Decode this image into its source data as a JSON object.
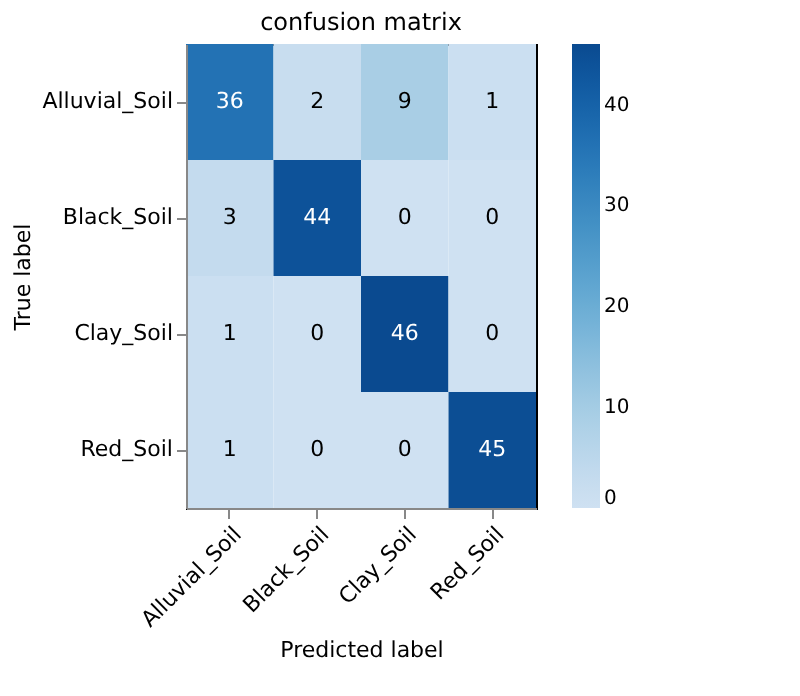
{
  "chart_data": {
    "type": "heatmap",
    "title": "confusion matrix",
    "xlabel": "Predicted label",
    "ylabel": "True label",
    "categories": [
      "Alluvial_Soil",
      "Black_Soil",
      "Clay_Soil",
      "Red_Soil"
    ],
    "y_categories": [
      "Alluvial_Soil",
      "Black_Soil",
      "Clay_Soil",
      "Red_Soil"
    ],
    "cells": [
      [
        36,
        2,
        9,
        1
      ],
      [
        3,
        44,
        0,
        0
      ],
      [
        1,
        0,
        46,
        0
      ],
      [
        1,
        0,
        0,
        45
      ]
    ],
    "clim": [
      0,
      46
    ],
    "cticks": [
      0,
      10,
      20,
      30,
      40
    ],
    "data_labels": true
  }
}
